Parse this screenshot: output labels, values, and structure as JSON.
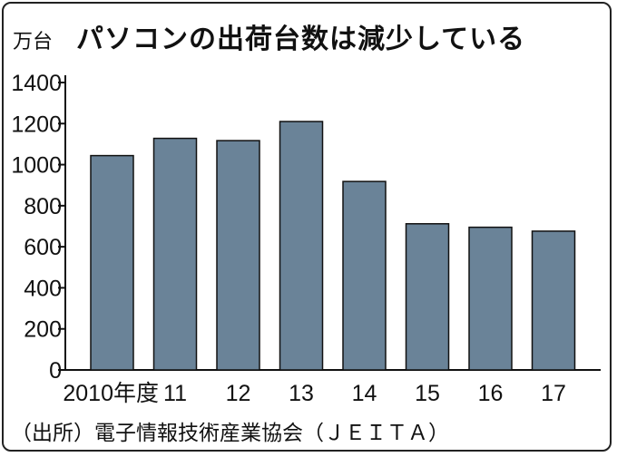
{
  "chart_data": {
    "type": "bar",
    "title": "パソコンの出荷台数は減少している",
    "ylabel": "万台",
    "xlabel": "",
    "categories": [
      "2010年度",
      "11",
      "12",
      "13",
      "14",
      "15",
      "16",
      "17"
    ],
    "values": [
      1044,
      1128,
      1117,
      1210,
      918,
      712,
      695,
      676
    ],
    "ylim": [
      0,
      1400
    ],
    "yticks": [
      0,
      200,
      400,
      600,
      800,
      1000,
      1200,
      1400
    ],
    "grid": false,
    "bar_color": "#6a8398",
    "source": "（出所）電子情報技術産業協会（ＪＥＩＴＡ）"
  }
}
